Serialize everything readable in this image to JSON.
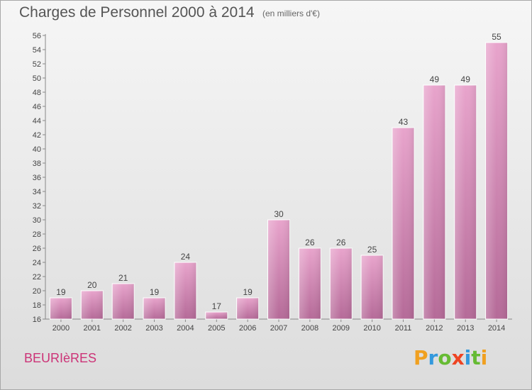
{
  "header": {
    "title": "Charges de Personnel 2000 à 2014",
    "subtitle": "(en milliers d'€)"
  },
  "town": "BEURIèRES",
  "logo": {
    "letters": [
      "P",
      "r",
      "o",
      "x",
      "i",
      "t",
      "i"
    ],
    "colors": [
      "#f0a020",
      "#3399dd",
      "#66bb33",
      "#ee4422",
      "#3399dd",
      "#66bb33",
      "#f0a020"
    ]
  },
  "chart_data": {
    "type": "bar",
    "title": "Charges de Personnel 2000 à 2014",
    "subtitle": "(en milliers d'€)",
    "categories": [
      "2000",
      "2001",
      "2002",
      "2003",
      "2004",
      "2005",
      "2006",
      "2007",
      "2008",
      "2009",
      "2010",
      "2011",
      "2012",
      "2013",
      "2014"
    ],
    "values": [
      19,
      20,
      21,
      19,
      24,
      17,
      19,
      30,
      26,
      26,
      25,
      43,
      49,
      49,
      55
    ],
    "ylim": [
      16,
      56
    ],
    "ytick_step": 2,
    "grid": false,
    "bar_color": "#d88ab8"
  }
}
